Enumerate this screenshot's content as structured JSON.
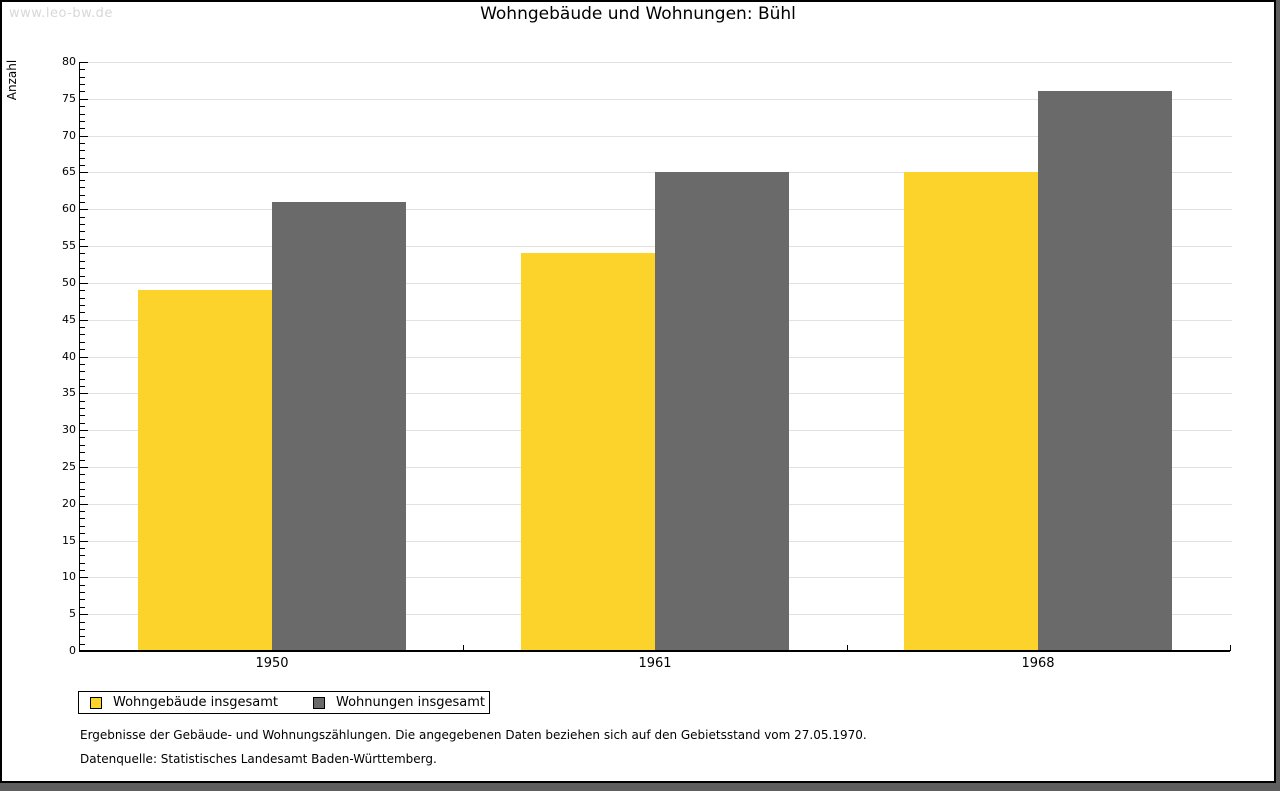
{
  "watermark": "www.leo-bw.de",
  "title": "Wohngebäude und Wohnungen: Bühl",
  "chart_data": {
    "type": "bar",
    "title": "Wohngebäude und Wohnungen: Bühl",
    "xlabel": "",
    "ylabel": "Anzahl",
    "categories": [
      "1950",
      "1961",
      "1968"
    ],
    "series": [
      {
        "name": "Wohngebäude insgesamt",
        "color": "#fcd32b",
        "values": [
          49,
          54,
          65
        ]
      },
      {
        "name": "Wohnungen insgesamt",
        "color": "#6a6a6a",
        "values": [
          61,
          65,
          76
        ]
      }
    ],
    "ylim": [
      0,
      80
    ],
    "y_major_step": 5,
    "y_minor_step": 1,
    "grid": true,
    "gridline_color": "#e1e1e1",
    "legend_position": "bottom-left"
  },
  "footer": {
    "line1": "Ergebnisse der Gebäude- und Wohnungszählungen. Die angegebenen Daten beziehen sich auf den Gebietsstand vom 27.05.1970.",
    "line2": "Datenquelle: Statistisches Landesamt Baden-Württemberg."
  }
}
